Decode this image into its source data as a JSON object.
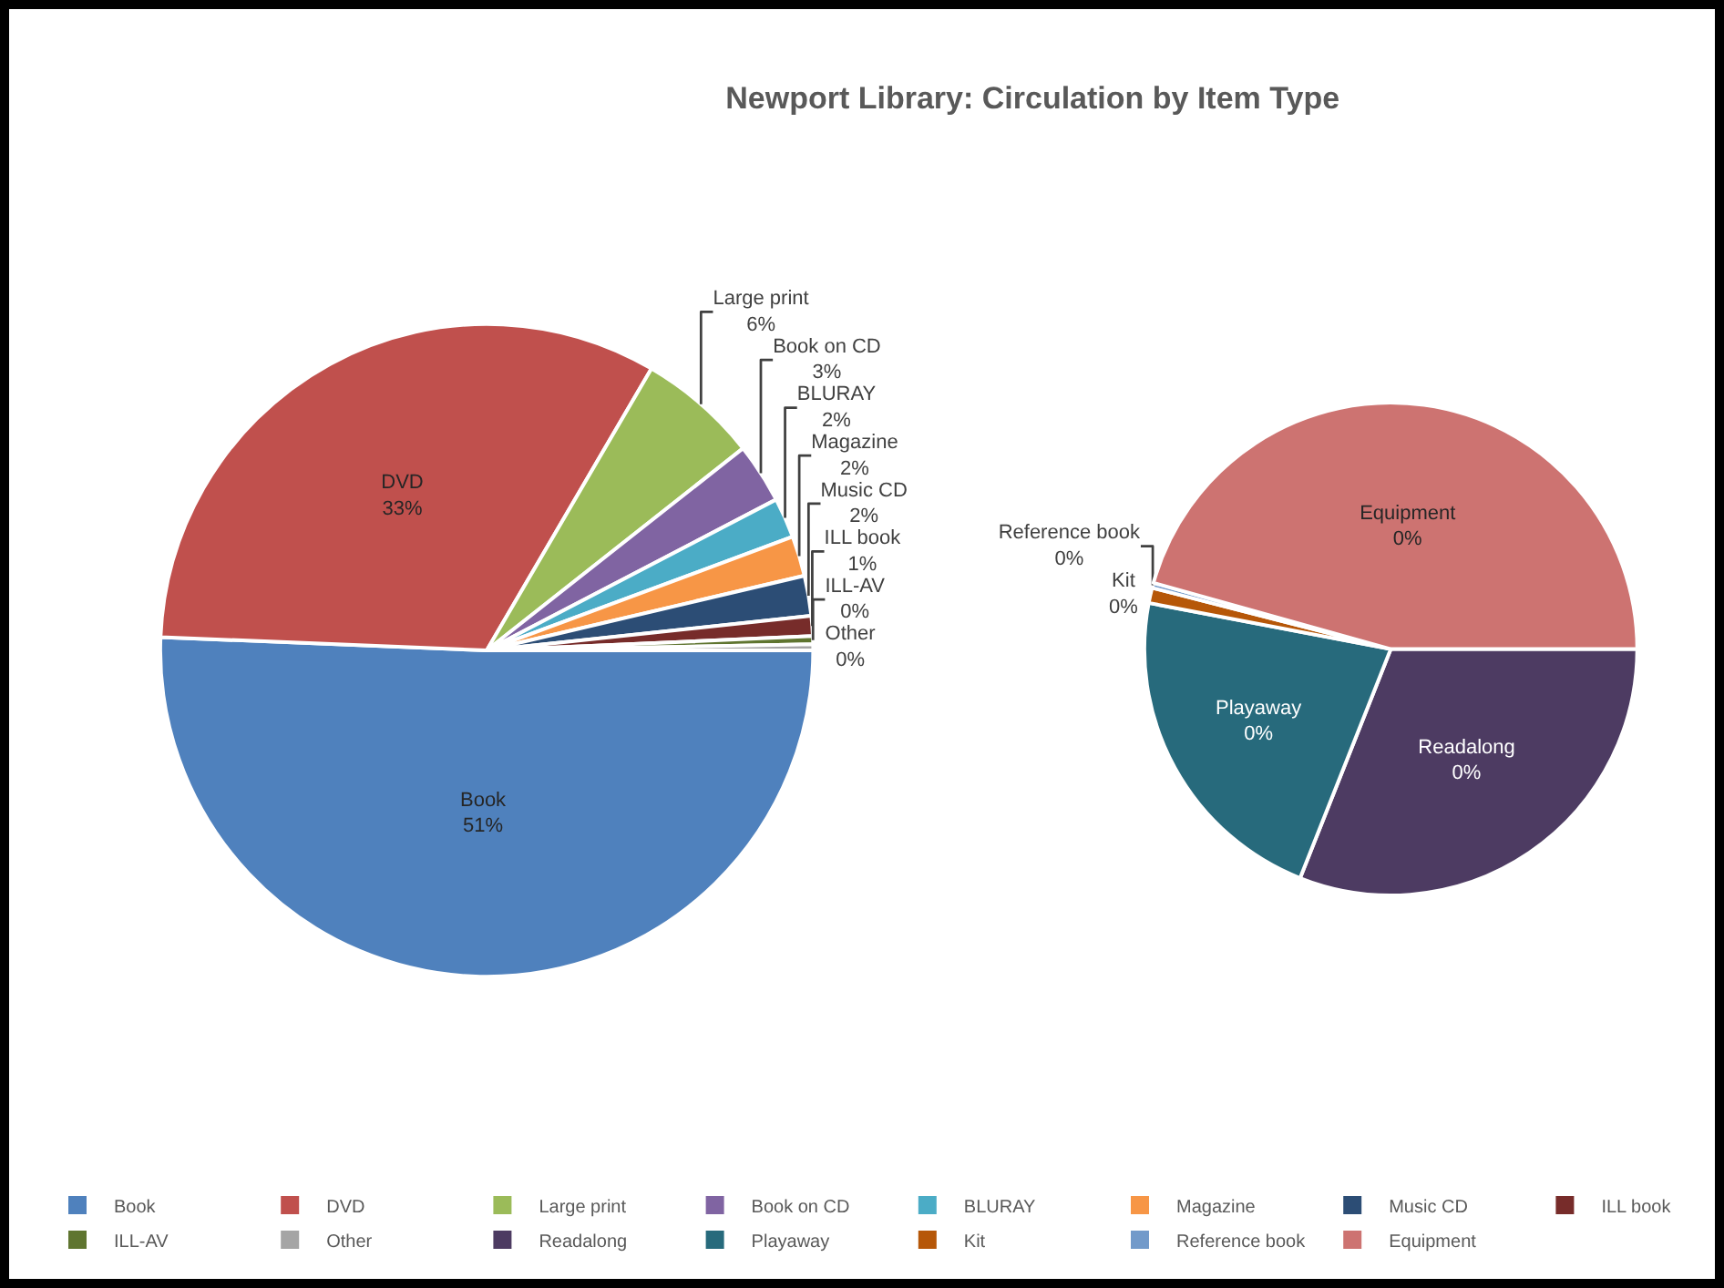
{
  "chart_data": [
    {
      "type": "pie",
      "title": "Newport Library: Circulation by Item Type",
      "legend": "bottom",
      "categories": [
        "Book",
        "DVD",
        "Large print",
        "Book on CD",
        "BLURAY",
        "Magazine",
        "Music CD",
        "ILL book",
        "ILL-AV",
        "Other"
      ],
      "values": [
        51,
        33,
        6,
        3,
        2,
        2,
        2,
        1,
        0.4,
        0.3
      ],
      "value_labels": [
        "51%",
        "33%",
        "6%",
        "3%",
        "2%",
        "2%",
        "2%",
        "1%",
        "0%",
        "0%"
      ],
      "colors": [
        "#4f81bd",
        "#c0504d",
        "#9bbb59",
        "#8064a2",
        "#4bacc6",
        "#f79646",
        "#2c4d75",
        "#772c2a",
        "#5f7530",
        "#a5a5a5"
      ]
    },
    {
      "type": "pie",
      "legend": "bottom",
      "categories": [
        "Readalong",
        "Playaway",
        "Kit",
        "Reference book",
        "Equipment"
      ],
      "values": [
        0.093,
        0.066,
        0.003,
        0.001,
        0.137
      ],
      "value_labels": [
        "0%",
        "0%",
        "0%",
        "0%",
        "0%"
      ],
      "colors": [
        "#4d3b62",
        "#276a7c",
        "#b65708",
        "#729aca",
        "#cd7371"
      ]
    }
  ]
}
